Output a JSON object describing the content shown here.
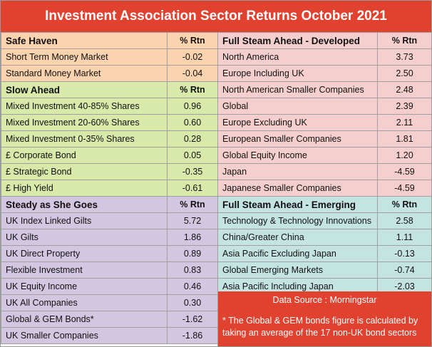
{
  "title": "Investment Association Sector Returns October 2021",
  "col_rtn": "% Rtn",
  "left_sections": [
    {
      "heading": "Safe Haven",
      "rtn_label": "% Rtn",
      "color": "#fbd3ae",
      "rows": [
        {
          "name": "Short Term Money Market",
          "rtn": "-0.02"
        },
        {
          "name": "Standard Money Market",
          "rtn": "-0.04"
        }
      ]
    },
    {
      "heading": "Slow Ahead",
      "rtn_label": "% Rtn",
      "color": "#d8e9a9",
      "rows": [
        {
          "name": "Mixed Investment 40-85% Shares",
          "rtn": "0.96"
        },
        {
          "name": "Mixed Investment 20-60% Shares",
          "rtn": "0.60"
        },
        {
          "name": "Mixed Investment 0-35% Shares",
          "rtn": "0.28"
        },
        {
          "name": "£ Corporate Bond",
          "rtn": "0.05"
        },
        {
          "name": "£ Strategic Bond",
          "rtn": "-0.35"
        },
        {
          "name": "£ High Yield",
          "rtn": "-0.61"
        }
      ]
    },
    {
      "heading": "Steady as She Goes",
      "rtn_label": "% Rtn",
      "color": "#d3c6e0",
      "rows": [
        {
          "name": "UK Index Linked Gilts",
          "rtn": "5.72"
        },
        {
          "name": "UK Gilts",
          "rtn": "1.86"
        },
        {
          "name": "UK Direct Property",
          "rtn": "0.89"
        },
        {
          "name": "Flexible Investment",
          "rtn": "0.83"
        },
        {
          "name": "UK Equity Income",
          "rtn": "0.46"
        },
        {
          "name": "UK All Companies",
          "rtn": "0.30"
        },
        {
          "name": "Global & GEM Bonds*",
          "rtn": "-1.62"
        },
        {
          "name": "UK Smaller Companies",
          "rtn": "-1.86"
        }
      ]
    }
  ],
  "right_sections": [
    {
      "heading": "Full Steam Ahead - Developed",
      "rtn_label": "% Rtn",
      "color": "#f4cfcd",
      "rows": [
        {
          "name": "North America",
          "rtn": "3.73"
        },
        {
          "name": "Europe Including UK",
          "rtn": "2.50"
        },
        {
          "name": "North American Smaller Companies",
          "rtn": "2.48"
        },
        {
          "name": "Global",
          "rtn": "2.39"
        },
        {
          "name": "Europe Excluding UK",
          "rtn": "2.11"
        },
        {
          "name": "European Smaller Companies",
          "rtn": "1.81"
        },
        {
          "name": "Global Equity Income",
          "rtn": "1.20"
        },
        {
          "name": "Japan",
          "rtn": "-4.59"
        },
        {
          "name": "Japanese Smaller Companies",
          "rtn": "-4.59"
        }
      ]
    },
    {
      "heading": "Full Steam Ahead - Emerging",
      "rtn_label": "% Rtn",
      "color": "#c4e4e2",
      "rows": [
        {
          "name": "Technology & Technology Innovations",
          "rtn": "2.58"
        },
        {
          "name": "China/Greater China",
          "rtn": "1.11"
        },
        {
          "name": "Asia Pacific Excluding Japan",
          "rtn": "-0.13"
        },
        {
          "name": "Global Emerging Markets",
          "rtn": "-0.74"
        },
        {
          "name": "Asia Pacific Including Japan",
          "rtn": "-2.03"
        }
      ]
    }
  ],
  "note": {
    "source": "Data Source : Morningstar",
    "footnote": "* The Global & GEM bonds figure is calculated by taking an average of the 17 non-UK bond sectors",
    "color": "#e1412f"
  }
}
